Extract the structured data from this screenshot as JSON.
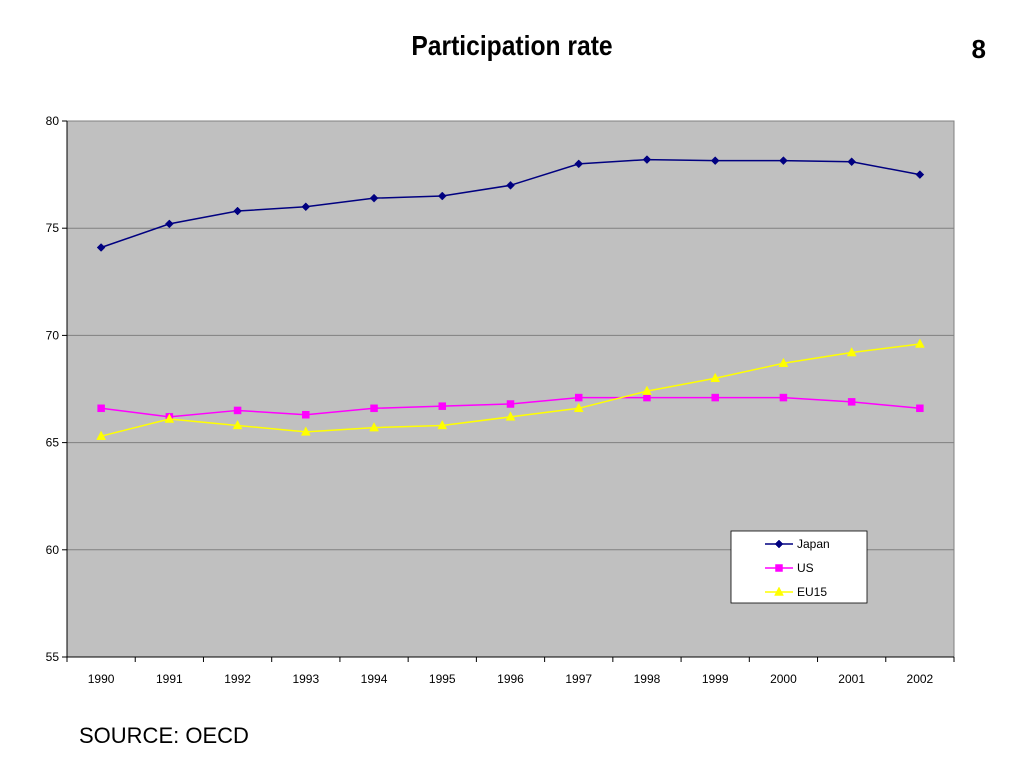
{
  "page": {
    "title": "Participation rate",
    "page_number": "8",
    "source": "SOURCE: OECD"
  },
  "colors": {
    "plot_background": "#c0c0c0",
    "gridline": "#808080",
    "Japan": "#000080",
    "US": "#ff00ff",
    "EU15": "#ffff00"
  },
  "chart_data": {
    "type": "line",
    "categories": [
      "1990",
      "1991",
      "1992",
      "1993",
      "1994",
      "1995",
      "1996",
      "1997",
      "1998",
      "1999",
      "2000",
      "2001",
      "2002"
    ],
    "series": [
      {
        "name": "Japan",
        "marker": "diamond",
        "values": [
          74.1,
          75.2,
          75.8,
          76.0,
          76.4,
          76.5,
          77.0,
          78.0,
          78.2,
          78.15,
          78.15,
          78.1,
          77.5
        ]
      },
      {
        "name": "US",
        "marker": "square",
        "values": [
          66.6,
          66.2,
          66.5,
          66.3,
          66.6,
          66.7,
          66.8,
          67.1,
          67.1,
          67.1,
          67.1,
          66.9,
          66.6
        ]
      },
      {
        "name": "EU15",
        "marker": "triangle",
        "values": [
          65.3,
          66.1,
          65.8,
          65.5,
          65.7,
          65.8,
          66.2,
          66.6,
          67.4,
          68.0,
          68.7,
          69.2,
          69.6
        ]
      }
    ],
    "ylim": [
      55,
      80
    ],
    "yticks": [
      55,
      60,
      65,
      70,
      75,
      80
    ],
    "grid": true,
    "legend": "lower-right"
  }
}
